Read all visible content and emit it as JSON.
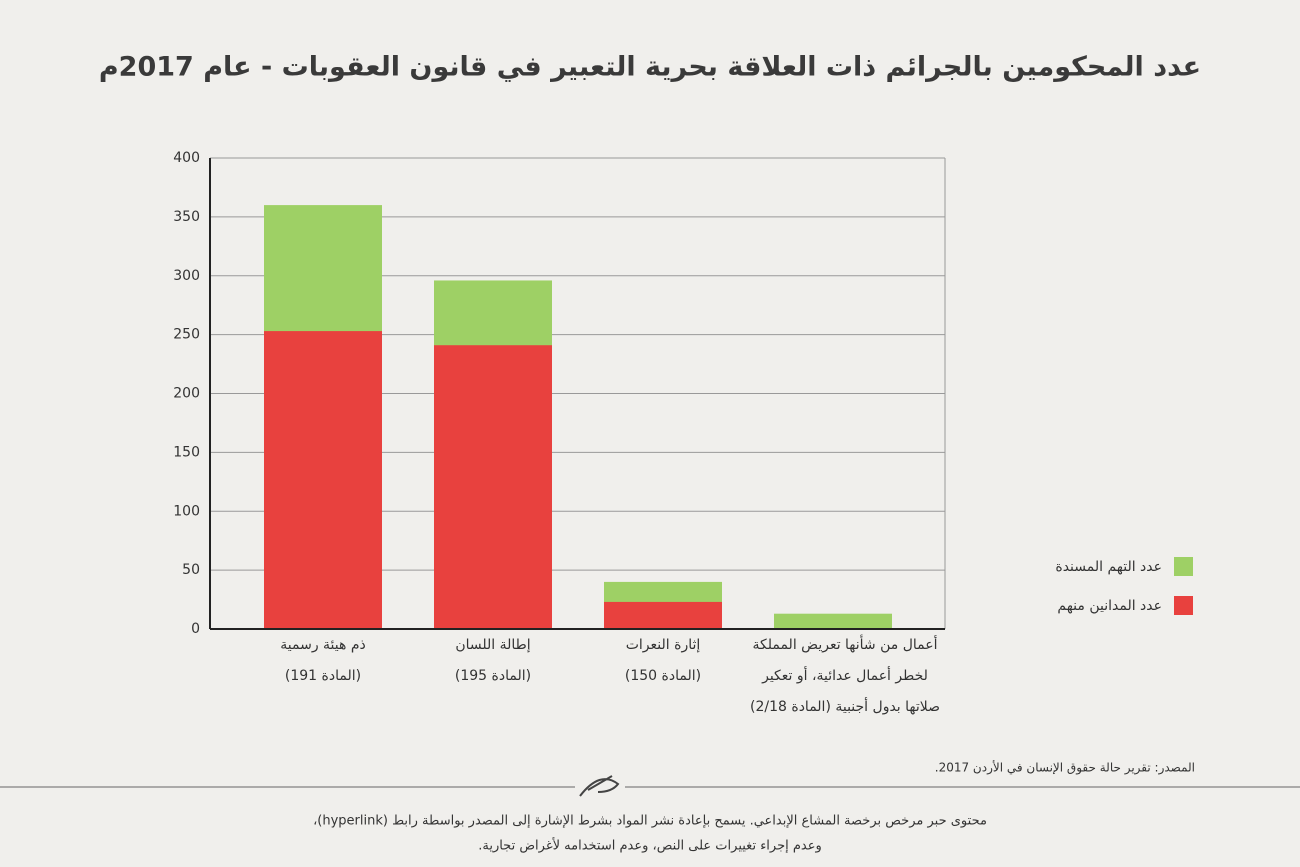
{
  "chart_data": {
    "type": "bar",
    "title": "عدد المحكومين بالجرائم ذات العلاقة بحرية التعبير في قانون العقوبات - عام 2017م",
    "categories": [
      [
        "ذم هيئة رسمية",
        "(المادة 191)"
      ],
      [
        "إطالة اللسان",
        "(المادة 195)"
      ],
      [
        "إثارة النعرات",
        "(المادة 150)"
      ],
      [
        "أعمال من شأنها تعريض المملكة",
        "لخطر أعمال عدائية، أو تعكير",
        "صلاتها بدول أجنبية (المادة 2/18)"
      ]
    ],
    "series": [
      {
        "name": "عدد التهم المسندة",
        "color": "#9ed065",
        "values": [
          360,
          296,
          40,
          13
        ]
      },
      {
        "name": "عدد المدانين منهم",
        "color": "#e8413e",
        "values": [
          253,
          241,
          23,
          0
        ]
      }
    ],
    "ylim": [
      0,
      400
    ],
    "yticks": [
      0,
      50,
      100,
      150,
      200,
      250,
      300,
      350,
      400
    ],
    "grid": true,
    "legend": "right",
    "source": "المصدر: تقرير حالة حقوق الإنسان في الأردن 2017.",
    "footer": [
      "محتوى حبر مرخص برخصة المشاع الإبداعي. يسمح بإعادة نشر المواد بشرط الإشارة إلى المصدر بواسطة رابط (hyperlink)،",
      "وعدم إجراء تغييرات على النص، وعدم استخدامه لأغراض تجارية."
    ]
  }
}
